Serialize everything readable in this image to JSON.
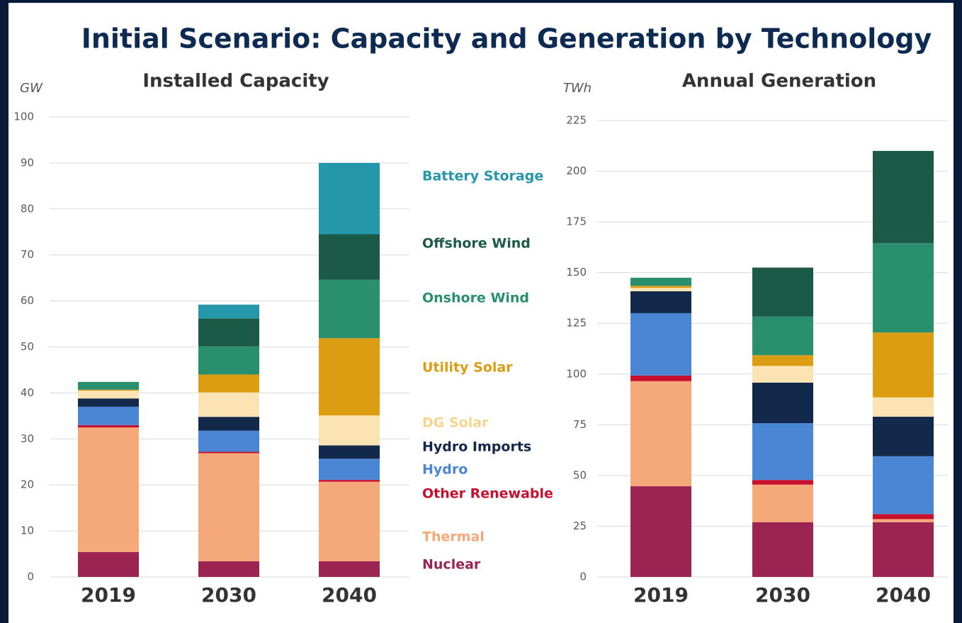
{
  "title": "Initial Scenario: Capacity and Generation by Technology",
  "chart_data": [
    {
      "type": "stacked_bar",
      "title": "Installed Capacity",
      "y_unit": "GW",
      "categories": [
        "2019",
        "2030",
        "2040"
      ],
      "ylim": [
        0,
        100
      ],
      "yticks": [
        0,
        10,
        20,
        30,
        40,
        50,
        60,
        70,
        80,
        90,
        100
      ],
      "grid": true,
      "series": [
        {
          "name": "Nuclear",
          "color": "#9b2450",
          "values": [
            5.4,
            3.4,
            3.4
          ]
        },
        {
          "name": "Thermal",
          "color": "#f5a87a",
          "values": [
            27.1,
            23.5,
            17.3
          ]
        },
        {
          "name": "Other Renewable",
          "color": "#c8102e",
          "values": [
            0.5,
            0.3,
            0.4
          ]
        },
        {
          "name": "Hydro",
          "color": "#4a86d4",
          "values": [
            4,
            4.6,
            4.6
          ]
        },
        {
          "name": "Hydro Imports",
          "color": "#13294b",
          "values": [
            1.8,
            3,
            2.9
          ]
        },
        {
          "name": "DG Solar",
          "color": "#fbe3b4",
          "values": [
            1.7,
            5.3,
            6.5
          ]
        },
        {
          "name": "Utility Solar",
          "color": "#dd9d12",
          "values": [
            0.2,
            3.9,
            16.8
          ]
        },
        {
          "name": "Onshore Wind",
          "color": "#2a8f6c",
          "values": [
            1.7,
            6.1,
            12.7
          ]
        },
        {
          "name": "Offshore Wind",
          "color": "#1c5a48",
          "values": [
            0,
            6.1,
            9.9
          ]
        },
        {
          "name": "Battery Storage",
          "color": "#2497ab",
          "values": [
            0,
            3,
            15.5
          ]
        }
      ]
    },
    {
      "type": "stacked_bar",
      "title": "Annual Generation",
      "y_unit": "TWh",
      "categories": [
        "2019",
        "2030",
        "2040"
      ],
      "ylim": [
        0,
        225
      ],
      "yticks": [
        0,
        25,
        50,
        75,
        100,
        125,
        150,
        175,
        200,
        225
      ],
      "grid": true,
      "series": [
        {
          "values": [
            44.7,
            27,
            27
          ]
        },
        {
          "values": [
            51.8,
            18.5,
            1.5
          ]
        },
        {
          "values": [
            2.8,
            2.3,
            2.5
          ]
        },
        {
          "values": [
            30.7,
            28,
            28.5
          ]
        },
        {
          "values": [
            10.8,
            20,
            19.5
          ]
        },
        {
          "values": [
            1.7,
            8.2,
            9.5
          ]
        },
        {
          "values": [
            1,
            5.3,
            32
          ]
        },
        {
          "values": [
            4,
            19,
            44
          ]
        },
        {
          "values": [
            0,
            24.2,
            45.5
          ]
        },
        {
          "values": [
            0,
            0,
            0
          ]
        }
      ]
    }
  ]
}
